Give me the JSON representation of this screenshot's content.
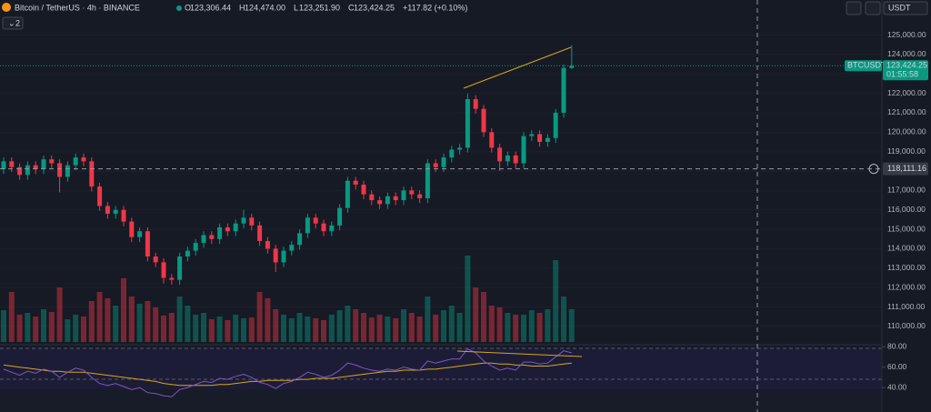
{
  "header": {
    "symbol": "Bitcoin / TetherUS · 4h · BINANCE",
    "ohlc": [
      {
        "label": "O",
        "value": "123,306.44"
      },
      {
        "label": "H",
        "value": "124,474.00"
      },
      {
        "label": "L",
        "value": "123,251.90"
      },
      {
        "label": "C",
        "value": "123,424.25"
      }
    ],
    "change": "+117.82 (+0.10%)",
    "indicators": "2",
    "currency": "USDT"
  },
  "price_tag": {
    "symbol": "BTCUSDT",
    "price": "123,424.25",
    "countdown": "01:55:58",
    "value": 123424.25
  },
  "crosshair": {
    "label": "118,111.16",
    "value": 118111.16
  },
  "chart_data": {
    "type": "candlestick",
    "ylim": [
      109200,
      125400
    ],
    "yticks": [
      {
        "value": 110000,
        "label": "110,000.00"
      },
      {
        "value": 111000,
        "label": "111,000.00"
      },
      {
        "value": 112000,
        "label": "112,000.00"
      },
      {
        "value": 113000,
        "label": "113,000.00"
      },
      {
        "value": 114000,
        "label": "114,000.00"
      },
      {
        "value": 115000,
        "label": "115,000.00"
      },
      {
        "value": 116000,
        "label": "116,000.00"
      },
      {
        "value": 117000,
        "label": "117,000.00"
      },
      {
        "value": 118000,
        "label": "118,000.00"
      },
      {
        "value": 119000,
        "label": "119,000.00"
      },
      {
        "value": 120000,
        "label": "120,000.00"
      },
      {
        "value": 121000,
        "label": "121,000.00"
      },
      {
        "value": 122000,
        "label": "122,000.00"
      },
      {
        "value": 123000,
        "label": "123,000.00"
      },
      {
        "value": 124000,
        "label": "124,000.00"
      },
      {
        "value": 125000,
        "label": "125,000.00"
      }
    ],
    "up_color": "#089981",
    "down_color": "#f23645",
    "candles": [
      [
        118100,
        118700,
        117850,
        118500
      ],
      [
        118500,
        118700,
        117950,
        118200
      ],
      [
        118200,
        118400,
        117550,
        117800
      ],
      [
        117800,
        118500,
        117550,
        118300
      ],
      [
        118300,
        118500,
        117850,
        118100
      ],
      [
        118100,
        118800,
        117850,
        118600
      ],
      [
        118600,
        118800,
        118150,
        118400
      ],
      [
        118400,
        118600,
        116900,
        117700
      ],
      [
        117700,
        118500,
        117450,
        118300
      ],
      [
        118300,
        118900,
        118050,
        118700
      ],
      [
        118700,
        118900,
        118250,
        118500
      ],
      [
        118500,
        118700,
        116950,
        117200
      ],
      [
        117200,
        117400,
        115950,
        116200
      ],
      [
        116200,
        116400,
        115550,
        115800
      ],
      [
        115800,
        116200,
        115550,
        116000
      ],
      [
        116000,
        116200,
        115150,
        115400
      ],
      [
        115400,
        115600,
        114350,
        114600
      ],
      [
        114600,
        115100,
        114350,
        114900
      ],
      [
        114900,
        115100,
        113350,
        113600
      ],
      [
        113600,
        113800,
        113050,
        113300
      ],
      [
        113300,
        113500,
        112200,
        112500
      ],
      [
        112500,
        112700,
        112150,
        112400
      ],
      [
        112400,
        113800,
        112150,
        113600
      ],
      [
        113600,
        114100,
        113350,
        113900
      ],
      [
        113900,
        114500,
        113650,
        114300
      ],
      [
        114300,
        114900,
        114050,
        114700
      ],
      [
        114700,
        114900,
        114250,
        114500
      ],
      [
        114500,
        115300,
        114250,
        115100
      ],
      [
        115100,
        115300,
        114650,
        114900
      ],
      [
        114900,
        115500,
        114650,
        115300
      ],
      [
        115300,
        116000,
        115050,
        115600
      ],
      [
        115600,
        115800,
        114950,
        115200
      ],
      [
        115200,
        115400,
        114150,
        114400
      ],
      [
        114400,
        114600,
        113750,
        114000
      ],
      [
        114000,
        114200,
        112800,
        113300
      ],
      [
        113300,
        114100,
        113050,
        113900
      ],
      [
        113900,
        114400,
        113650,
        114200
      ],
      [
        114200,
        115000,
        113950,
        114800
      ],
      [
        114800,
        115800,
        114550,
        115600
      ],
      [
        115600,
        115800,
        115050,
        115300
      ],
      [
        115300,
        115500,
        114650,
        114900
      ],
      [
        114900,
        115400,
        114650,
        115200
      ],
      [
        115200,
        116300,
        114950,
        116100
      ],
      [
        116100,
        117700,
        115850,
        117500
      ],
      [
        117500,
        117700,
        117050,
        117300
      ],
      [
        117300,
        117500,
        116550,
        116800
      ],
      [
        116800,
        117000,
        116250,
        116500
      ],
      [
        116500,
        116700,
        116050,
        116300
      ],
      [
        116300,
        116900,
        116050,
        116700
      ],
      [
        116700,
        116900,
        116250,
        116500
      ],
      [
        116500,
        117200,
        116250,
        117000
      ],
      [
        117000,
        117200,
        116550,
        116800
      ],
      [
        116800,
        117000,
        116350,
        116600
      ],
      [
        116600,
        118600,
        116350,
        118400
      ],
      [
        118400,
        118600,
        117950,
        118200
      ],
      [
        118200,
        118900,
        117950,
        118700
      ],
      [
        118700,
        119300,
        118450,
        119100
      ],
      [
        119100,
        119400,
        118850,
        119200
      ],
      [
        119200,
        122000,
        118950,
        121700
      ],
      [
        121700,
        121900,
        120950,
        121200
      ],
      [
        121200,
        121400,
        119750,
        120000
      ],
      [
        120000,
        120200,
        118950,
        119200
      ],
      [
        119200,
        119400,
        118000,
        118500
      ],
      [
        118500,
        119000,
        118250,
        118800
      ],
      [
        118800,
        119000,
        118150,
        118400
      ],
      [
        118400,
        120000,
        118150,
        119800
      ],
      [
        119800,
        120100,
        119550,
        119900
      ],
      [
        119900,
        120100,
        119250,
        119500
      ],
      [
        119500,
        119900,
        119250,
        119700
      ],
      [
        119700,
        121200,
        119450,
        121000
      ],
      [
        121000,
        123500,
        120750,
        123306.44
      ],
      [
        123306.44,
        124474,
        123251.9,
        123424.25
      ]
    ],
    "volume": [
      3500,
      5500,
      3000,
      3200,
      2800,
      3600,
      3300,
      6000,
      2500,
      3000,
      2800,
      4500,
      5500,
      4800,
      4000,
      7000,
      5000,
      4200,
      4500,
      3800,
      2900,
      3200,
      5000,
      4000,
      3000,
      3200,
      2500,
      2800,
      2400,
      3000,
      2600,
      2700,
      5500,
      4800,
      3600,
      3000,
      2600,
      3200,
      2800,
      2600,
      2400,
      3000,
      3500,
      4000,
      3600,
      3200,
      2700,
      3000,
      2800,
      2600,
      3600,
      3200,
      2800,
      5000,
      3000,
      3500,
      4000,
      3200,
      9500,
      6000,
      5500,
      4000,
      3800,
      3200,
      3000,
      3000,
      3500,
      3200,
      3600,
      9000,
      5000,
      3600
    ],
    "rsi": {
      "ylim": [
        16,
        82
      ],
      "yticks": [
        {
          "value": 80,
          "label": "80.00"
        },
        {
          "value": 60,
          "label": "60.00"
        },
        {
          "value": 40,
          "label": "40.00"
        }
      ],
      "color": "#7e57c2",
      "ma_color": "#d4a81e",
      "values": [
        58,
        55,
        52,
        56,
        54,
        58,
        56,
        50,
        55,
        59,
        57,
        50,
        44,
        42,
        44,
        41,
        38,
        40,
        35,
        34,
        32,
        31,
        38,
        40,
        43,
        46,
        45,
        49,
        48,
        51,
        53,
        50,
        45,
        43,
        39,
        44,
        46,
        50,
        55,
        53,
        50,
        52,
        57,
        64,
        62,
        59,
        57,
        56,
        58,
        57,
        60,
        58,
        57,
        66,
        64,
        66,
        68,
        68,
        78,
        74,
        66,
        61,
        57,
        59,
        57,
        65,
        65,
        63,
        64,
        70,
        76,
        74
      ],
      "ma": [
        62,
        61,
        60,
        59,
        58,
        57,
        56,
        56,
        55,
        55,
        55,
        54,
        53,
        52,
        51,
        50,
        49,
        48,
        47,
        46,
        44,
        43,
        42,
        42,
        42,
        42,
        42,
        43,
        43,
        44,
        45,
        46,
        46,
        47,
        47,
        47,
        47,
        48,
        48,
        49,
        49,
        49,
        50,
        51,
        52,
        53,
        54,
        55,
        56,
        56,
        57,
        57,
        57,
        58,
        58,
        59,
        60,
        61,
        62,
        63,
        64,
        64,
        63,
        63,
        62,
        62,
        61,
        61,
        61,
        62,
        63,
        64
      ]
    }
  }
}
